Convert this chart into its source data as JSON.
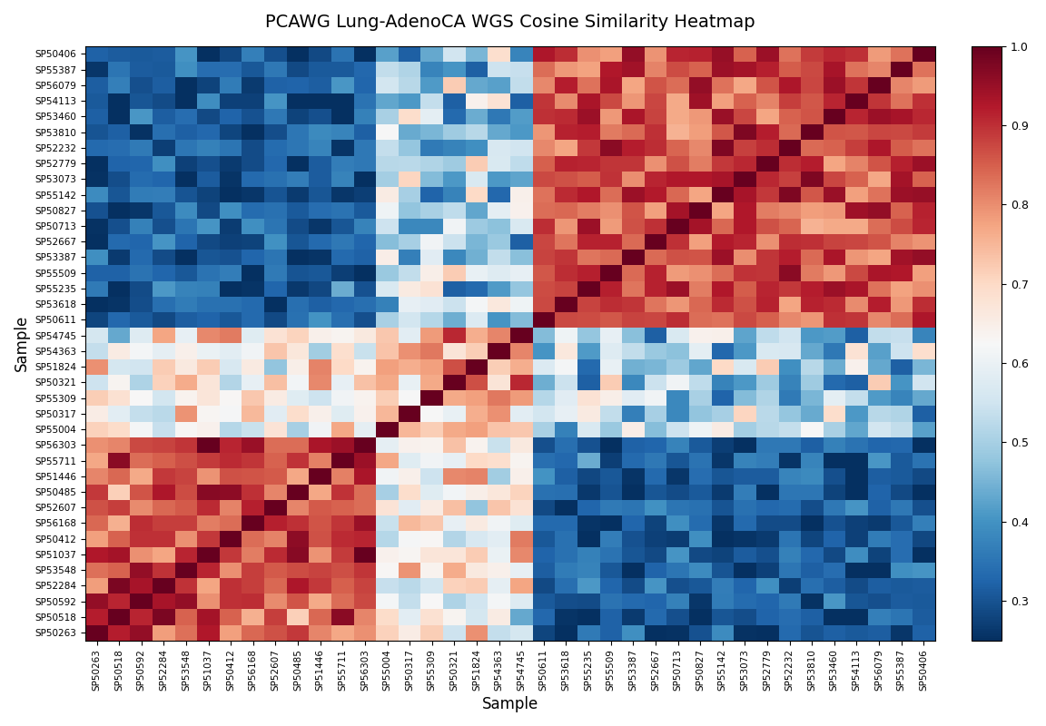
{
  "title": "PCAWG Lung-AdenoCA WGS Cosine Similarity Heatmap",
  "xlabel": "Sample",
  "ylabel": "Sample",
  "colormap": "RdBu_r",
  "vmin": 0.25,
  "vmax": 1.0,
  "colorbar_ticks": [
    0.3,
    0.4,
    0.5,
    0.6,
    0.7,
    0.8,
    0.9,
    1.0
  ],
  "y_labels": [
    "SP50406",
    "SP55387",
    "SP56079",
    "SP54113",
    "SP53460",
    "SP53810",
    "SP52232",
    "SP52779",
    "SP53073",
    "SP55142",
    "SP50827",
    "SP50713",
    "SP52667",
    "SP53387",
    "SP55509",
    "SP55235",
    "SP53618",
    "SP50611",
    "SP54745",
    "SP54363",
    "SP51824",
    "SP50321",
    "SP55309",
    "SP50317",
    "SP55004",
    "SP56303",
    "SP55711",
    "SP51446",
    "SP50485",
    "SP52607",
    "SP56168",
    "SP50412",
    "SP51037",
    "SP53548",
    "SP52284",
    "SP50592",
    "SP50518",
    "SP50263"
  ],
  "x_labels": [
    "SP50263",
    "SP50518",
    "SP50592",
    "SP52284",
    "SP53548",
    "SP51037",
    "SP50412",
    "SP56168",
    "SP52607",
    "SP50485",
    "SP51446",
    "SP55711",
    "SP56303",
    "SP55004",
    "SP50317",
    "SP55309",
    "SP50321",
    "SP51824",
    "SP54363",
    "SP54745",
    "SP50611",
    "SP53618",
    "SP55235",
    "SP55509",
    "SP53387",
    "SP52667",
    "SP50713",
    "SP50827",
    "SP55142",
    "SP53073",
    "SP52779",
    "SP52232",
    "SP53810",
    "SP53460",
    "SP54113",
    "SP56079",
    "SP55387",
    "SP50406"
  ]
}
